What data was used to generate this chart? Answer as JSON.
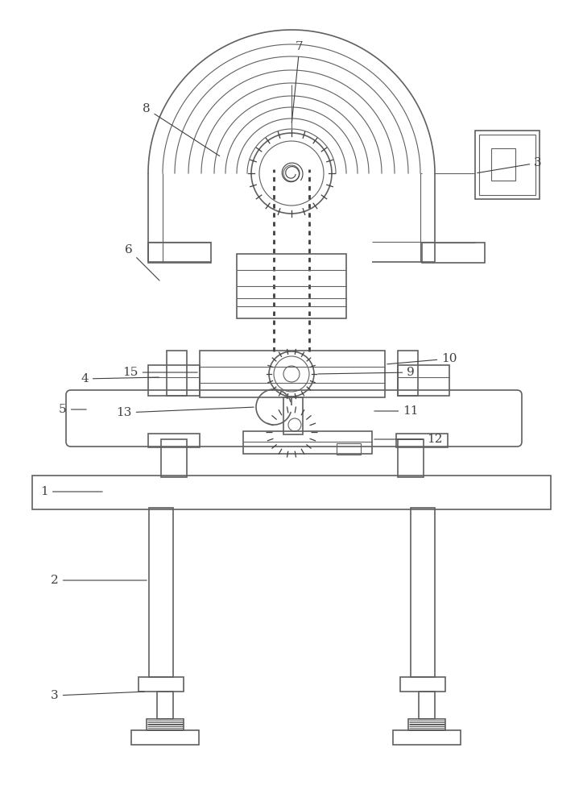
{
  "bg_color": "#ffffff",
  "line_color": "#606060",
  "dark_line": "#404040",
  "label_color": "#404040",
  "fig_width": 7.24,
  "fig_height": 10.0
}
